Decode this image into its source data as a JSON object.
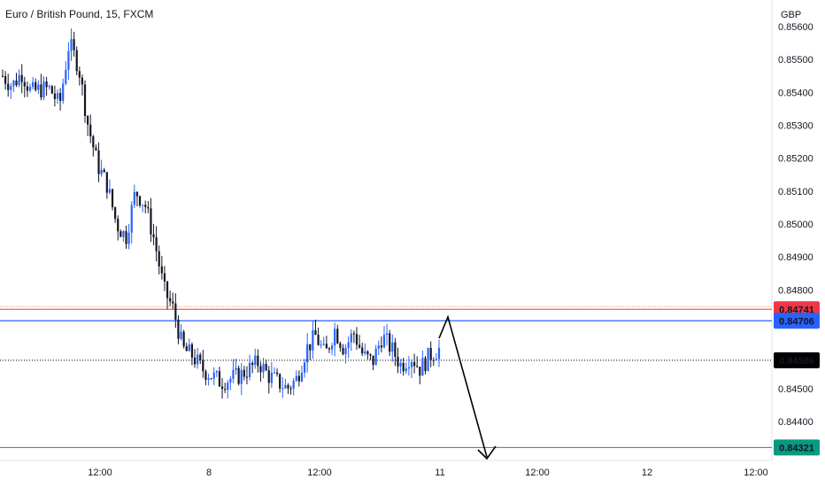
{
  "header": {
    "title": "Euro / British Pound, 15, FXCM"
  },
  "chart_data": {
    "type": "candlestick",
    "currency": "GBP",
    "ylim": [
      0.843,
      0.8561
    ],
    "y_ticks": [
      "0.85600",
      "0.85500",
      "0.85400",
      "0.85300",
      "0.85200",
      "0.85100",
      "0.85000",
      "0.84900",
      "0.84800",
      "0.84500",
      "0.84400"
    ],
    "x_ticks": [
      "12:00",
      "8",
      "12:00",
      "11",
      "12:00",
      "12",
      "12:00"
    ],
    "price_labels": [
      {
        "value": "0.84741",
        "kind": "resistance"
      },
      {
        "value": "0.84706",
        "kind": "level"
      },
      {
        "value": "0.84586",
        "kind": "last"
      },
      {
        "value": "0.84321",
        "kind": "target"
      }
    ],
    "close_path": [
      0.8545,
      0.8542,
      0.8546,
      0.854,
      0.8541,
      0.8541,
      0.8536,
      0.8555,
      0.8548,
      0.853,
      0.8518,
      0.8512,
      0.85,
      0.8496,
      0.851,
      0.8506,
      0.8495,
      0.848,
      0.8474,
      0.8462,
      0.846,
      0.8456,
      0.8454,
      0.8452,
      0.8453,
      0.8454,
      0.8456,
      0.8458,
      0.8454,
      0.8452,
      0.845,
      0.8453,
      0.8462,
      0.8466,
      0.846,
      0.8468,
      0.8462,
      0.8467,
      0.846,
      0.8458,
      0.8466,
      0.8462,
      0.8457,
      0.846,
      0.8456,
      0.846,
      0.8462
    ],
    "colors": {
      "up": "#2962ff",
      "down": "#131722",
      "resistance": "#f23645",
      "level": "#2962ff",
      "last": "#000000",
      "target": "#089981",
      "zone": "#f2a65a"
    }
  }
}
